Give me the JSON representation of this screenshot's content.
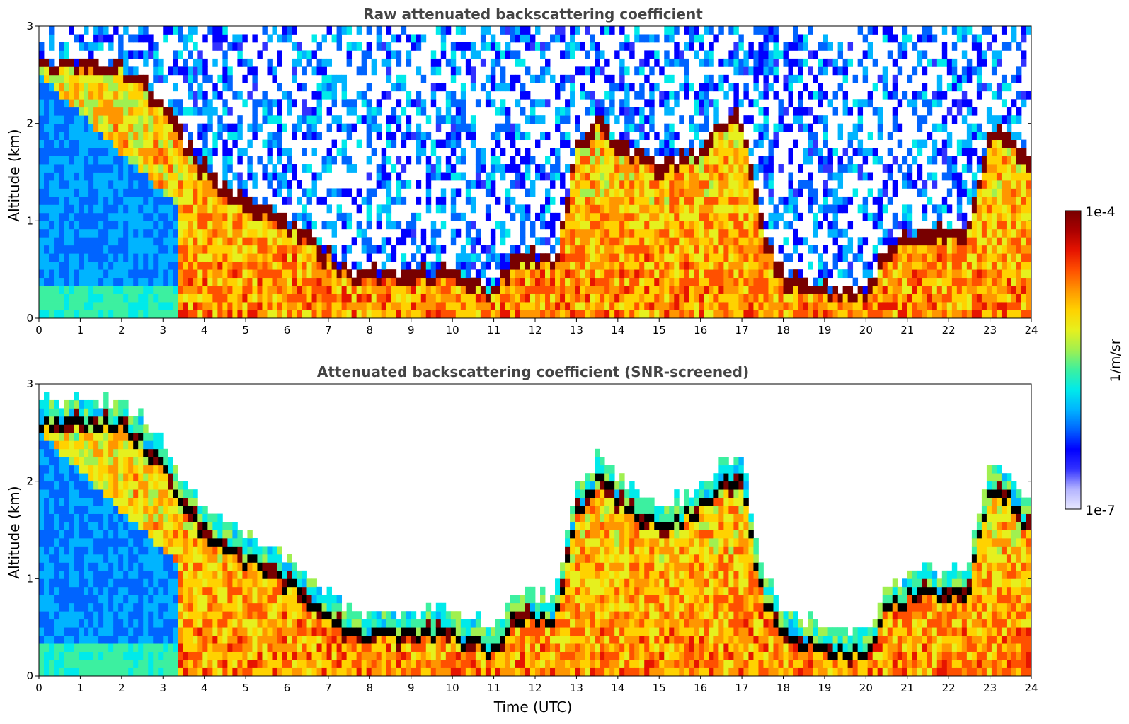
{
  "figure": {
    "colorbar": {
      "max_label": "1e-4",
      "min_label": "1e-7",
      "unit_label": "1/m/sr",
      "colors": [
        "#e8e8ff",
        "#b4b4ff",
        "#3232ff",
        "#0000ff",
        "#0064ff",
        "#00b4ff",
        "#00eaea",
        "#3cf0a0",
        "#a0f050",
        "#e6f01e",
        "#ffd200",
        "#ff9600",
        "#ff5000",
        "#e61400",
        "#aa0000",
        "#780000"
      ]
    },
    "x_axis_label": "Time (UTC)"
  },
  "chart_data": [
    {
      "type": "heatmap",
      "title": "Raw attenuated backscattering coefficient",
      "xlabel": "",
      "ylabel": "Altitude (km)",
      "xlim": [
        0,
        24
      ],
      "ylim": [
        0,
        3
      ],
      "xticks": [
        "0",
        "1",
        "2",
        "3",
        "4",
        "5",
        "6",
        "7",
        "8",
        "9",
        "10",
        "11",
        "12",
        "13",
        "14",
        "15",
        "16",
        "17",
        "18",
        "19",
        "20",
        "21",
        "22",
        "23",
        "24"
      ],
      "yticks": [
        "0",
        "1",
        "2",
        "3"
      ],
      "color_scale": "log",
      "color_range": [
        1e-07,
        0.0001
      ],
      "cloud_base_km": {
        "time_utc": [
          1.8,
          2.5,
          3.2,
          3.8,
          4.5,
          5.5,
          6.5,
          7.5,
          8.5,
          9.5,
          10.5,
          11.0,
          11.5,
          12.5,
          13.0,
          13.5,
          14.0,
          15.0,
          15.5,
          16.0,
          16.5,
          17.0,
          17.5,
          18.0,
          18.5,
          19.5,
          20.0,
          20.5,
          21.5,
          22.5,
          23.0,
          23.5,
          24.0
        ],
        "altitude": [
          2.6,
          2.4,
          2.0,
          1.6,
          1.3,
          1.1,
          0.8,
          0.45,
          0.4,
          0.45,
          0.35,
          0.25,
          0.6,
          0.6,
          1.7,
          2.0,
          1.8,
          1.5,
          1.6,
          1.7,
          2.0,
          2.0,
          0.85,
          0.4,
          0.35,
          0.25,
          0.2,
          0.7,
          0.85,
          0.9,
          1.9,
          1.8,
          1.5
        ]
      }
    },
    {
      "type": "heatmap",
      "title": "Attenuated backscattering coefficient (SNR-screened)",
      "xlabel": "Time (UTC)",
      "ylabel": "Altitude (km)",
      "xlim": [
        0,
        24
      ],
      "ylim": [
        0,
        3
      ],
      "xticks": [
        "0",
        "1",
        "2",
        "3",
        "4",
        "5",
        "6",
        "7",
        "8",
        "9",
        "10",
        "11",
        "12",
        "13",
        "14",
        "15",
        "16",
        "17",
        "18",
        "19",
        "20",
        "21",
        "22",
        "23",
        "24"
      ],
      "yticks": [
        "0",
        "1",
        "2",
        "3"
      ],
      "color_scale": "log",
      "color_range": [
        1e-07,
        0.0001
      ],
      "cloud_base_km": {
        "time_utc": [
          1.8,
          2.5,
          3.2,
          3.8,
          4.5,
          5.5,
          6.5,
          7.5,
          8.5,
          9.5,
          10.5,
          11.0,
          11.5,
          12.5,
          13.0,
          13.5,
          14.0,
          15.0,
          15.5,
          16.0,
          16.5,
          17.0,
          17.5,
          18.0,
          18.5,
          19.5,
          20.0,
          20.5,
          21.5,
          22.5,
          23.0,
          23.5,
          24.0
        ],
        "altitude": [
          2.6,
          2.4,
          2.0,
          1.6,
          1.3,
          1.1,
          0.8,
          0.45,
          0.4,
          0.45,
          0.35,
          0.25,
          0.6,
          0.6,
          1.7,
          2.0,
          1.8,
          1.5,
          1.6,
          1.7,
          2.0,
          2.0,
          0.85,
          0.4,
          0.35,
          0.25,
          0.2,
          0.7,
          0.85,
          0.9,
          1.9,
          1.8,
          1.5
        ]
      }
    }
  ]
}
